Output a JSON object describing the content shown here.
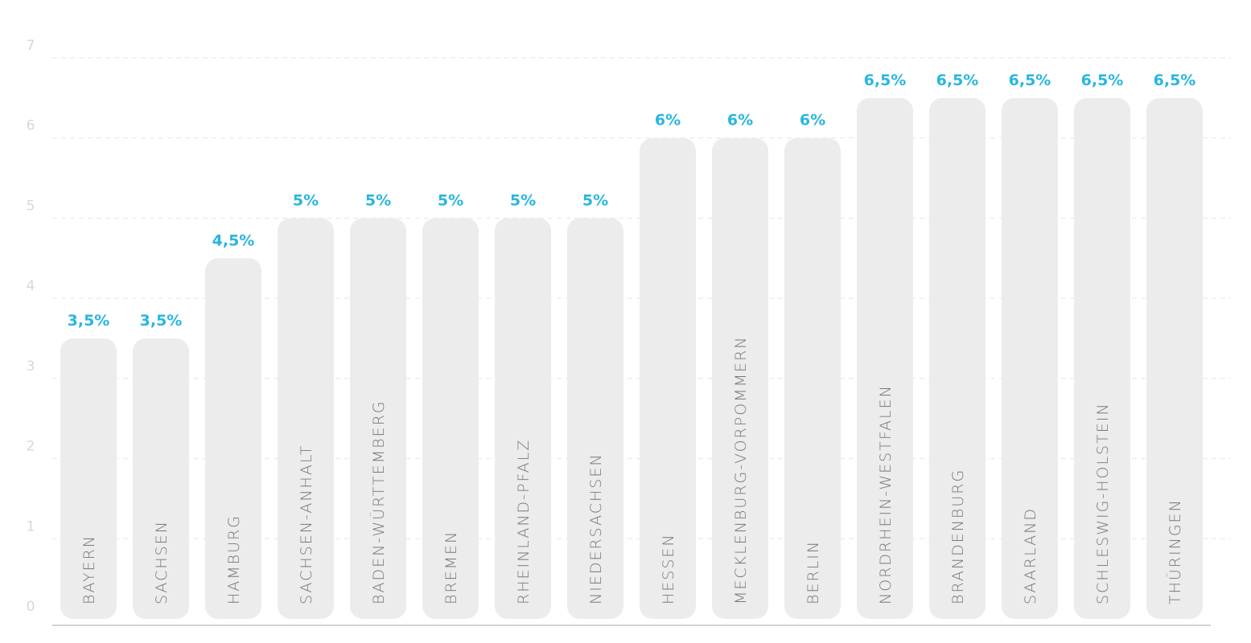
{
  "chart_data": {
    "type": "bar",
    "categories": [
      "BAYERN",
      "SACHSEN",
      "HAMBURG",
      "SACHSEN-ANHALT",
      "BADEN-WÜRTTEMBERG",
      "BREMEN",
      "RHEINLAND-PFALZ",
      "NIEDERSACHSEN",
      "HESSEN",
      "MECKLENBURG-VORPOMMERN",
      "BERLIN",
      "NORDRHEIN-WESTFALEN",
      "BRANDENBURG",
      "SAARLAND",
      "SCHLESWIG-HOLSTEIN",
      "THÜRINGEN"
    ],
    "values": [
      3.5,
      3.5,
      4.5,
      5,
      5,
      5,
      5,
      5,
      6,
      6,
      6,
      6.5,
      6.5,
      6.5,
      6.5,
      6.5
    ],
    "value_labels": [
      "3,5%",
      "3,5%",
      "4,5%",
      "5%",
      "5%",
      "5%",
      "5%",
      "5%",
      "6%",
      "6%",
      "6%",
      "6,5%",
      "6,5%",
      "6,5%",
      "6,5%",
      "6,5%"
    ],
    "color": "#ececec",
    "label_color": "#29b6e0",
    "ylim": [
      0,
      7
    ],
    "yticks": [
      0,
      1,
      2,
      3,
      4,
      5,
      6,
      7
    ],
    "grid": true
  }
}
